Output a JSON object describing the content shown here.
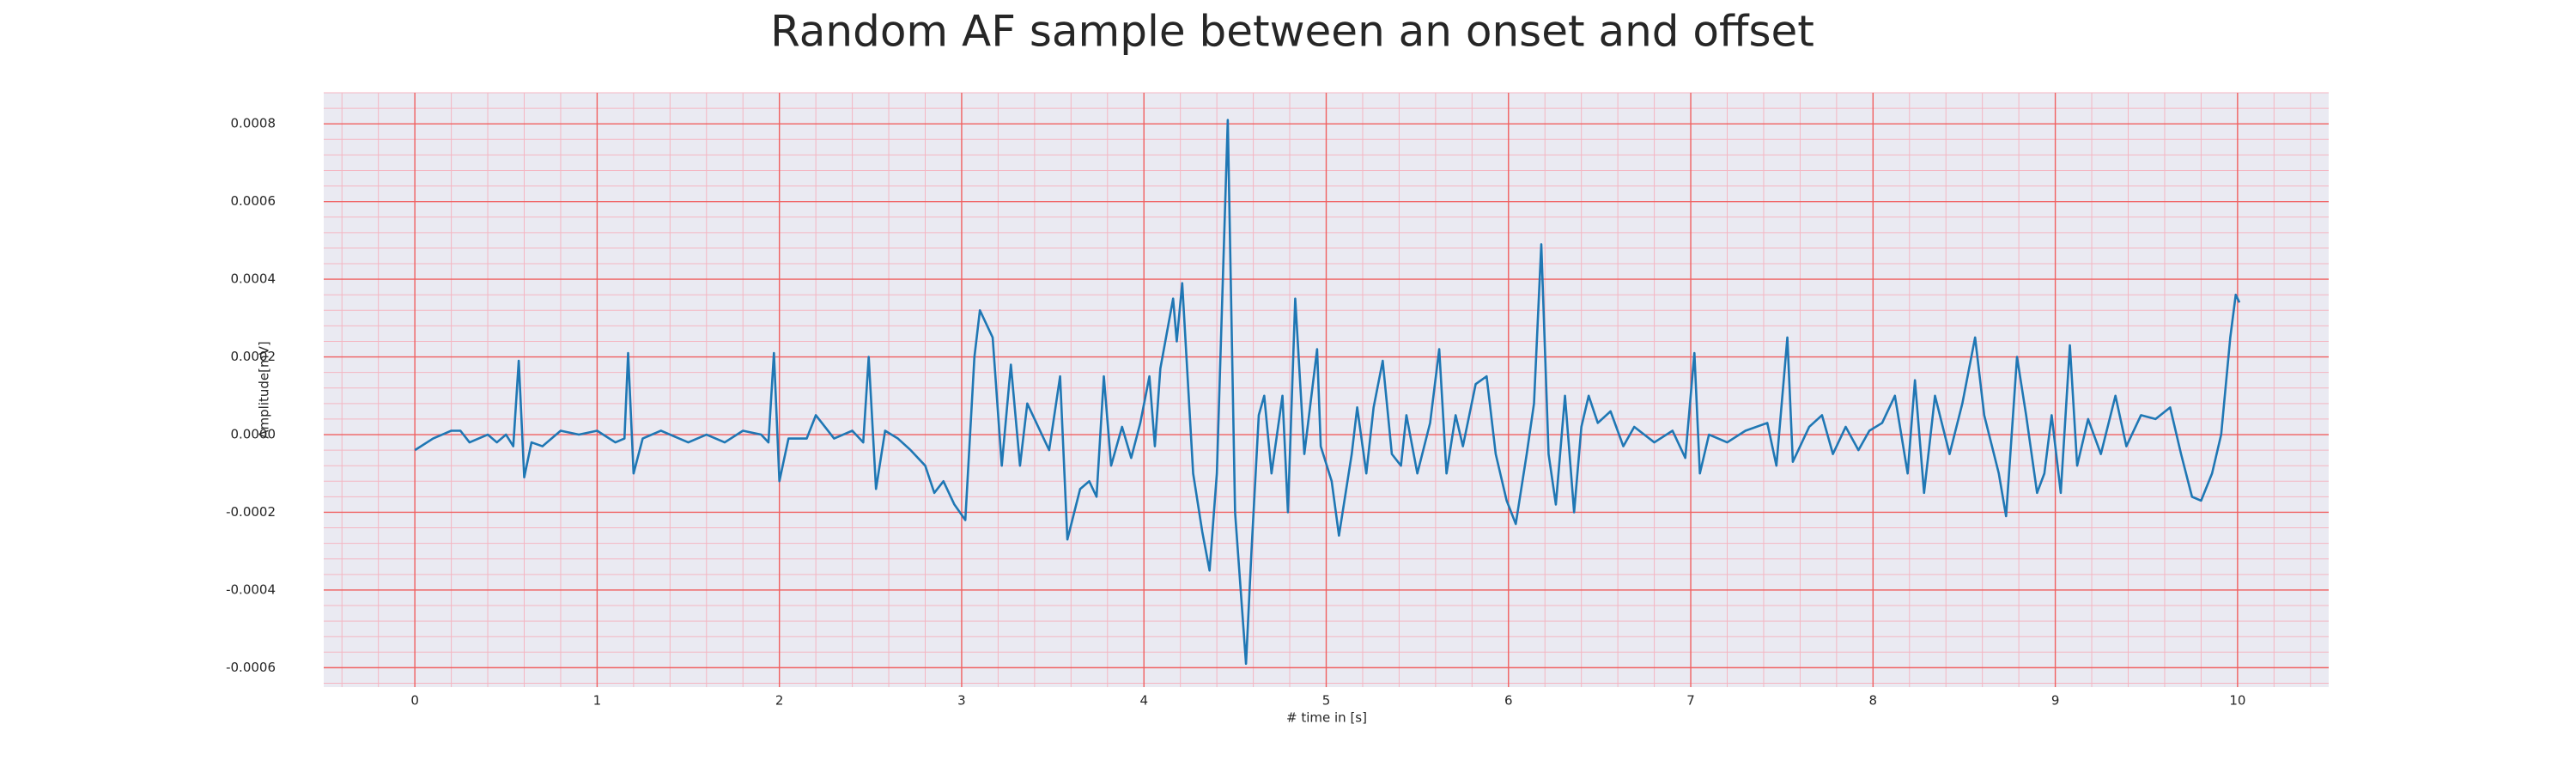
{
  "chart_data": {
    "type": "line",
    "title": "Random AF sample between an onset and offset",
    "xlabel": "# time in [s]",
    "ylabel": "Amplitude[mV]",
    "color": "#1f77b4",
    "grid": true,
    "minor_grid": true,
    "xlim": [
      -0.5,
      10.5
    ],
    "ylim": [
      -0.00065,
      0.00088
    ],
    "xticks": [
      0,
      1,
      2,
      3,
      4,
      5,
      6,
      7,
      8,
      9,
      10
    ],
    "yticks": [
      -0.0006,
      -0.0004,
      -0.0002,
      {
        "value": 0,
        "label": "0.0000"
      },
      0.0002,
      0.0004,
      0.0006,
      0.0008
    ],
    "x": [
      0,
      0.1,
      0.2,
      0.25,
      0.3,
      0.4,
      0.45,
      0.5,
      0.54,
      0.57,
      0.6,
      0.64,
      0.7,
      0.8,
      0.9,
      1.0,
      1.1,
      1.15,
      1.17,
      1.2,
      1.25,
      1.35,
      1.5,
      1.6,
      1.7,
      1.8,
      1.9,
      1.94,
      1.97,
      2.0,
      2.05,
      2.15,
      2.2,
      2.3,
      2.4,
      2.46,
      2.49,
      2.53,
      2.58,
      2.65,
      2.72,
      2.8,
      2.85,
      2.9,
      2.96,
      3.02,
      3.07,
      3.1,
      3.17,
      3.22,
      3.27,
      3.32,
      3.36,
      3.42,
      3.48,
      3.54,
      3.58,
      3.65,
      3.7,
      3.74,
      3.78,
      3.82,
      3.88,
      3.93,
      3.98,
      4.03,
      4.06,
      4.09,
      4.16,
      4.18,
      4.21,
      4.27,
      4.32,
      4.36,
      4.4,
      4.46,
      4.5,
      4.56,
      4.59,
      4.63,
      4.66,
      4.7,
      4.76,
      4.79,
      4.83,
      4.88,
      4.95,
      4.97,
      5.03,
      5.07,
      5.14,
      5.17,
      5.22,
      5.26,
      5.31,
      5.36,
      5.41,
      5.44,
      5.5,
      5.57,
      5.62,
      5.66,
      5.71,
      5.75,
      5.82,
      5.88,
      5.93,
      5.99,
      6.04,
      6.1,
      6.14,
      6.18,
      6.22,
      6.26,
      6.31,
      6.36,
      6.4,
      6.44,
      6.49,
      6.56,
      6.63,
      6.69,
      6.8,
      6.9,
      6.97,
      7.02,
      7.05,
      7.1,
      7.2,
      7.3,
      7.42,
      7.47,
      7.53,
      7.56,
      7.65,
      7.72,
      7.78,
      7.85,
      7.92,
      7.98,
      8.05,
      8.12,
      8.19,
      8.23,
      8.28,
      8.34,
      8.42,
      8.49,
      8.56,
      8.61,
      8.69,
      8.73,
      8.79,
      8.84,
      8.9,
      8.94,
      8.98,
      9.03,
      9.08,
      9.12,
      9.18,
      9.25,
      9.33,
      9.39,
      9.47,
      9.55,
      9.63,
      9.69,
      9.75,
      9.8,
      9.86,
      9.91,
      9.96,
      9.99,
      10.01
    ],
    "values": [
      -4e-05,
      -1e-05,
      1e-05,
      1e-05,
      -2e-05,
      0.0,
      -2e-05,
      0.0,
      -3e-05,
      0.00019,
      -0.00011,
      -2e-05,
      -3e-05,
      1e-05,
      0.0,
      1e-05,
      -2e-05,
      -1e-05,
      0.00021,
      -0.0001,
      -1e-05,
      1e-05,
      -2e-05,
      0.0,
      -2e-05,
      1e-05,
      0.0,
      -2e-05,
      0.00021,
      -0.00012,
      -1e-05,
      -1e-05,
      5e-05,
      -1e-05,
      1e-05,
      -2e-05,
      0.0002,
      -0.00014,
      1e-05,
      -1e-05,
      -4e-05,
      -8e-05,
      -0.00015,
      -0.00012,
      -0.00018,
      -0.00022,
      0.0002,
      0.00032,
      0.00025,
      -8e-05,
      0.00018,
      -8e-05,
      8e-05,
      2e-05,
      -4e-05,
      0.00015,
      -0.00027,
      -0.00014,
      -0.00012,
      -0.00016,
      0.00015,
      -8e-05,
      2e-05,
      -6e-05,
      3e-05,
      0.00015,
      -3e-05,
      0.00017,
      0.00035,
      0.00024,
      0.00039,
      -0.0001,
      -0.00025,
      -0.00035,
      -0.0001,
      0.00081,
      -0.0002,
      -0.00059,
      -0.0003,
      5e-05,
      0.0001,
      -0.0001,
      0.0001,
      -0.0002,
      0.00035,
      -5e-05,
      0.00022,
      -3e-05,
      -0.00012,
      -0.00026,
      -5e-05,
      7e-05,
      -0.0001,
      7e-05,
      0.00019,
      -5e-05,
      -8e-05,
      5e-05,
      -0.0001,
      3e-05,
      0.00022,
      -0.0001,
      5e-05,
      -3e-05,
      0.00013,
      0.00015,
      -5e-05,
      -0.00017,
      -0.00023,
      -5e-05,
      8e-05,
      0.00049,
      -5e-05,
      -0.00018,
      0.0001,
      -0.0002,
      2e-05,
      0.0001,
      3e-05,
      6e-05,
      -3e-05,
      2e-05,
      -2e-05,
      1e-05,
      -6e-05,
      0.00021,
      -0.0001,
      0.0,
      -2e-05,
      1e-05,
      3e-05,
      -8e-05,
      0.00025,
      -7e-05,
      2e-05,
      5e-05,
      -5e-05,
      2e-05,
      -4e-05,
      1e-05,
      3e-05,
      0.0001,
      -0.0001,
      0.00014,
      -0.00015,
      0.0001,
      -5e-05,
      8e-05,
      0.00025,
      5e-05,
      -0.0001,
      -0.00021,
      0.0002,
      5e-05,
      -0.00015,
      -0.0001,
      5e-05,
      -0.00015,
      0.00023,
      -8e-05,
      4e-05,
      -5e-05,
      0.0001,
      -3e-05,
      5e-05,
      4e-05,
      7e-05,
      -5e-05,
      -0.00016,
      -0.00017,
      -0.0001,
      0.0,
      0.00025,
      0.00036,
      0.00034
    ]
  }
}
